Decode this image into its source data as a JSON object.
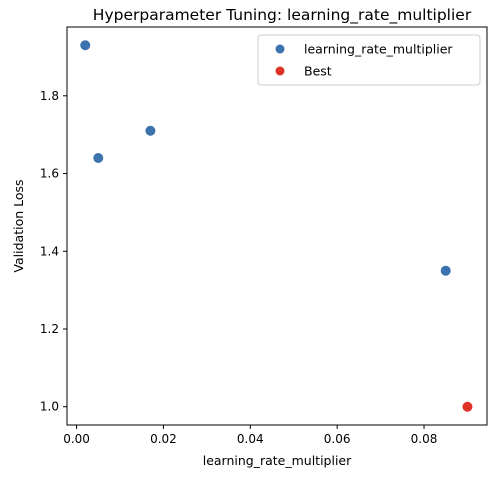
{
  "chart_data": {
    "type": "scatter",
    "title": "Hyperparameter Tuning: learning_rate_multiplier",
    "xlabel": "learning_rate_multiplier",
    "ylabel": "Validation Loss",
    "xlim": [
      -0.0022,
      0.0945
    ],
    "ylim": [
      0.953,
      1.977
    ],
    "xticks": [
      0.0,
      0.02,
      0.04,
      0.06,
      0.08
    ],
    "xtick_labels": [
      "0.00",
      "0.02",
      "0.04",
      "0.06",
      "0.08"
    ],
    "yticks": [
      1.0,
      1.2,
      1.4,
      1.6,
      1.8
    ],
    "ytick_labels": [
      "1.0",
      "1.2",
      "1.4",
      "1.6",
      "1.8"
    ],
    "grid": false,
    "legend_position": "top-right",
    "series": [
      {
        "name": "learning_rate_multiplier",
        "color": "#3a73ad",
        "points": [
          {
            "x": 0.002,
            "y": 1.93
          },
          {
            "x": 0.005,
            "y": 1.64
          },
          {
            "x": 0.017,
            "y": 1.71
          },
          {
            "x": 0.085,
            "y": 1.35
          }
        ]
      },
      {
        "name": "Best",
        "color": "#e03328",
        "points": [
          {
            "x": 0.09,
            "y": 1.0
          }
        ]
      }
    ]
  }
}
